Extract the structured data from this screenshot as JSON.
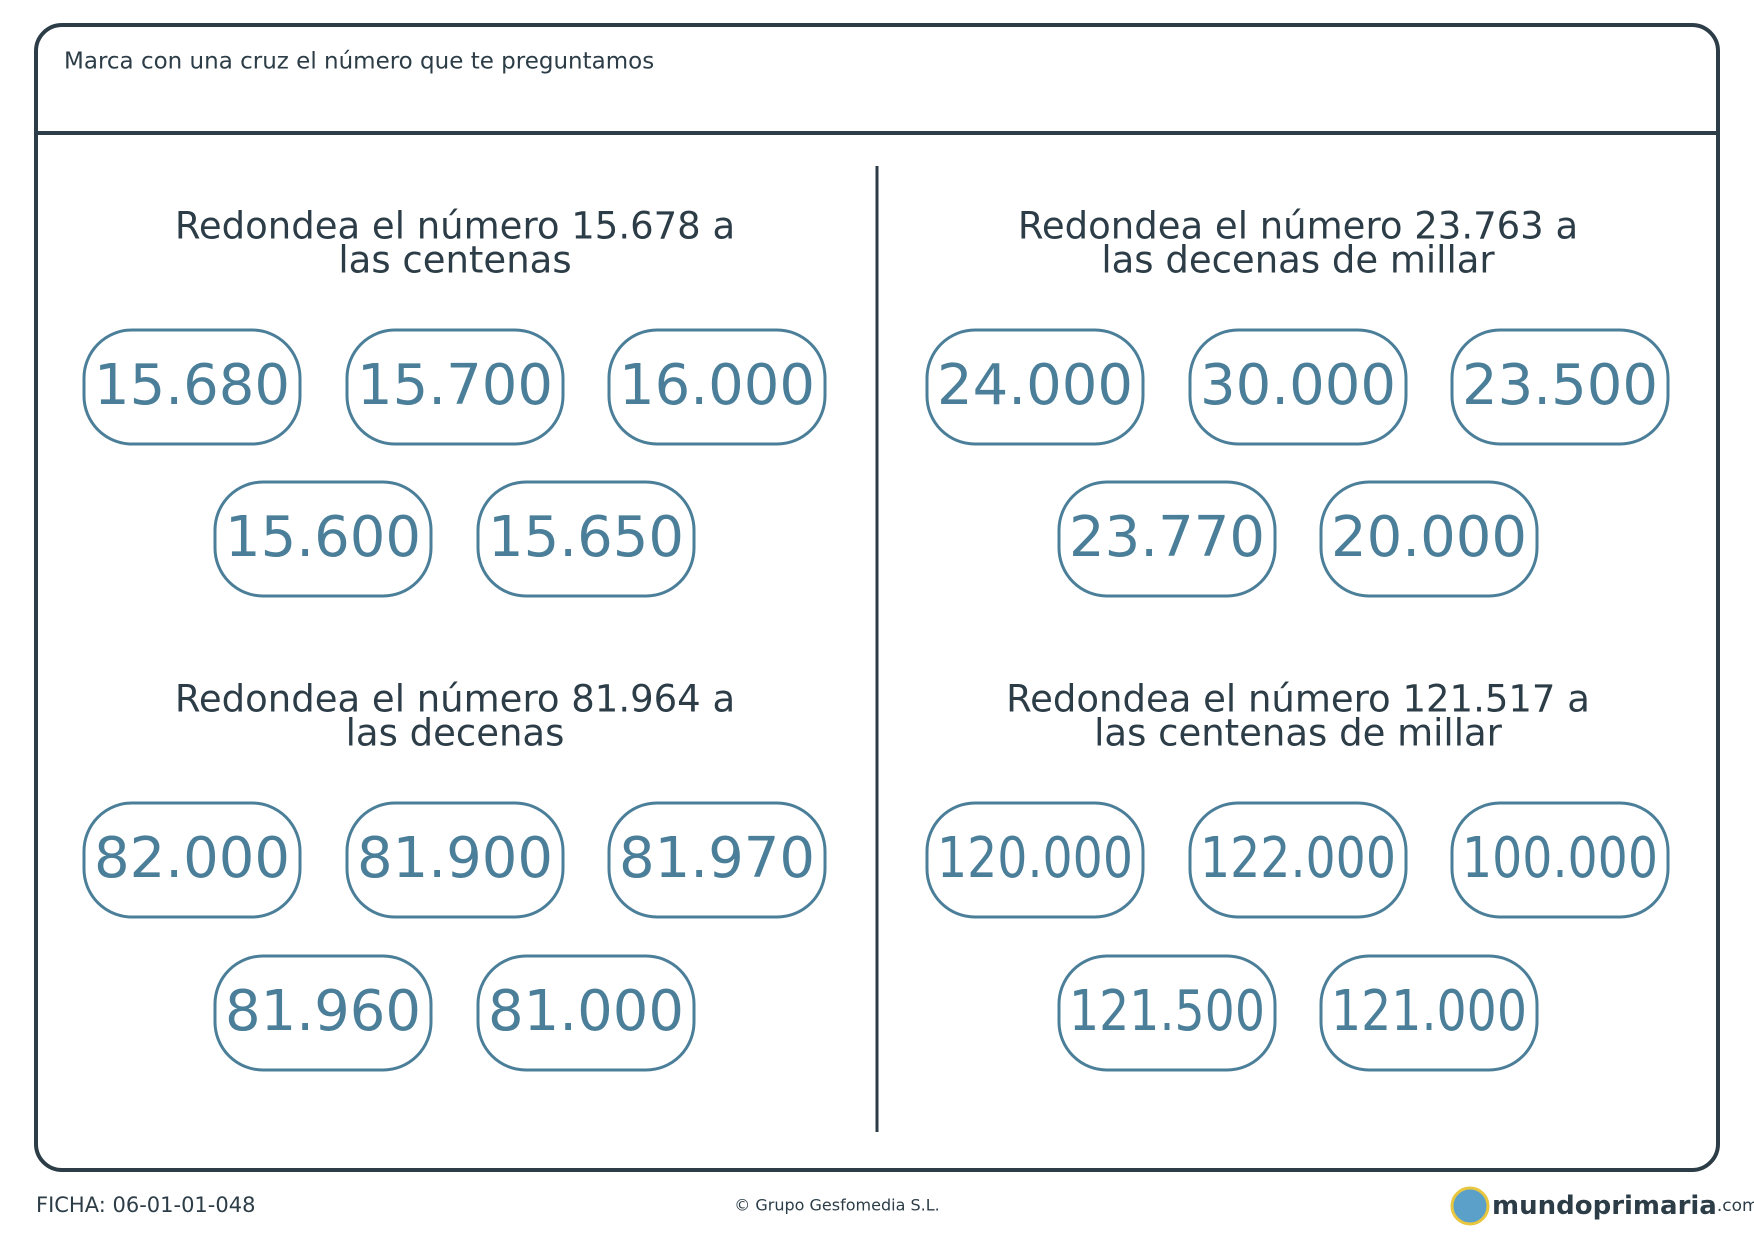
{
  "header": {
    "instruction": "Marca con una cruz el número que te preguntamos"
  },
  "exercises": [
    {
      "question": [
        "Redondea el número 15.678 a",
        "las centenas"
      ],
      "options": [
        "15.680",
        "15.700",
        "16.000",
        "15.600",
        "15.650"
      ]
    },
    {
      "question": [
        "Redondea el número 23.763 a",
        "las decenas de millar"
      ],
      "options": [
        "24.000",
        "30.000",
        "23.500",
        "23.770",
        "20.000"
      ]
    },
    {
      "question": [
        "Redondea el número 81.964 a",
        "las decenas"
      ],
      "options": [
        "82.000",
        "81.900",
        "81.970",
        "81.960",
        "81.000"
      ]
    },
    {
      "question": [
        "Redondea el número 121.517 a",
        "las centenas de millar"
      ],
      "options": [
        "120.000",
        "122.000",
        "100.000",
        "121.500",
        "121.000"
      ]
    }
  ],
  "footer": {
    "code": "FICHA: 06-01-01-048",
    "copyright": "© Grupo Gesfomedia S.L.",
    "logo": "mundoprimaria",
    "logo_suffix": ".com"
  }
}
